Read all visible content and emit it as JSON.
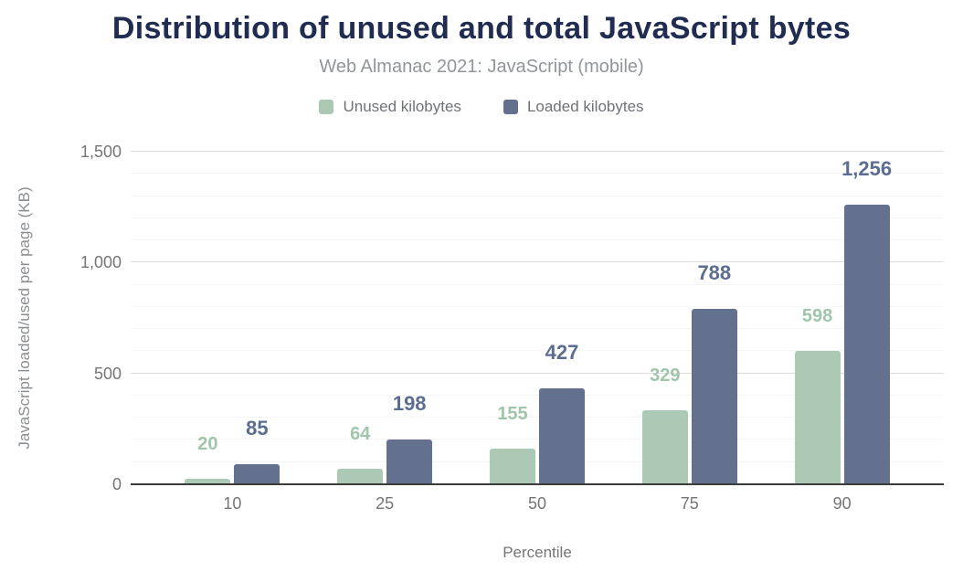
{
  "chart_data": {
    "type": "bar",
    "title": "Distribution of unused and total JavaScript bytes",
    "subtitle": "Web Almanac 2021: JavaScript (mobile)",
    "xlabel": "Percentile",
    "ylabel": "JavaScript loaded/used per page (KB)",
    "categories": [
      "10",
      "25",
      "50",
      "75",
      "90"
    ],
    "series": [
      {
        "name": "Unused kilobytes",
        "color": "#abc9b5",
        "label_color": "#a0c5ab",
        "values": [
          20,
          64,
          155,
          329,
          598
        ],
        "labels": [
          "20",
          "64",
          "155",
          "329",
          "598"
        ]
      },
      {
        "name": "Loaded kilobytes",
        "color": "#63708e",
        "label_color": "#5b6d90",
        "values": [
          85,
          198,
          427,
          788,
          1256
        ],
        "labels": [
          "85",
          "198",
          "427",
          "788",
          "1,256"
        ]
      }
    ],
    "ylim": [
      0,
      1500
    ],
    "yticks": [
      {
        "value": 0,
        "label": "0"
      },
      {
        "value": 500,
        "label": "500"
      },
      {
        "value": 1000,
        "label": "1,000"
      },
      {
        "value": 1500,
        "label": "1,500"
      }
    ],
    "grid": {
      "minor_step": 100,
      "major_step": 500,
      "visible": true
    },
    "legend_position": "top"
  },
  "colors": {
    "title": "#202c50",
    "subtitle": "#91969b",
    "legend_text": "#6f7277",
    "axis_text": "#757575",
    "ylabel_text": "#8b8e91",
    "grid_major": "#dcdcdc",
    "grid_minor": "#f4f4f4",
    "baseline": "#3c3c3c"
  }
}
